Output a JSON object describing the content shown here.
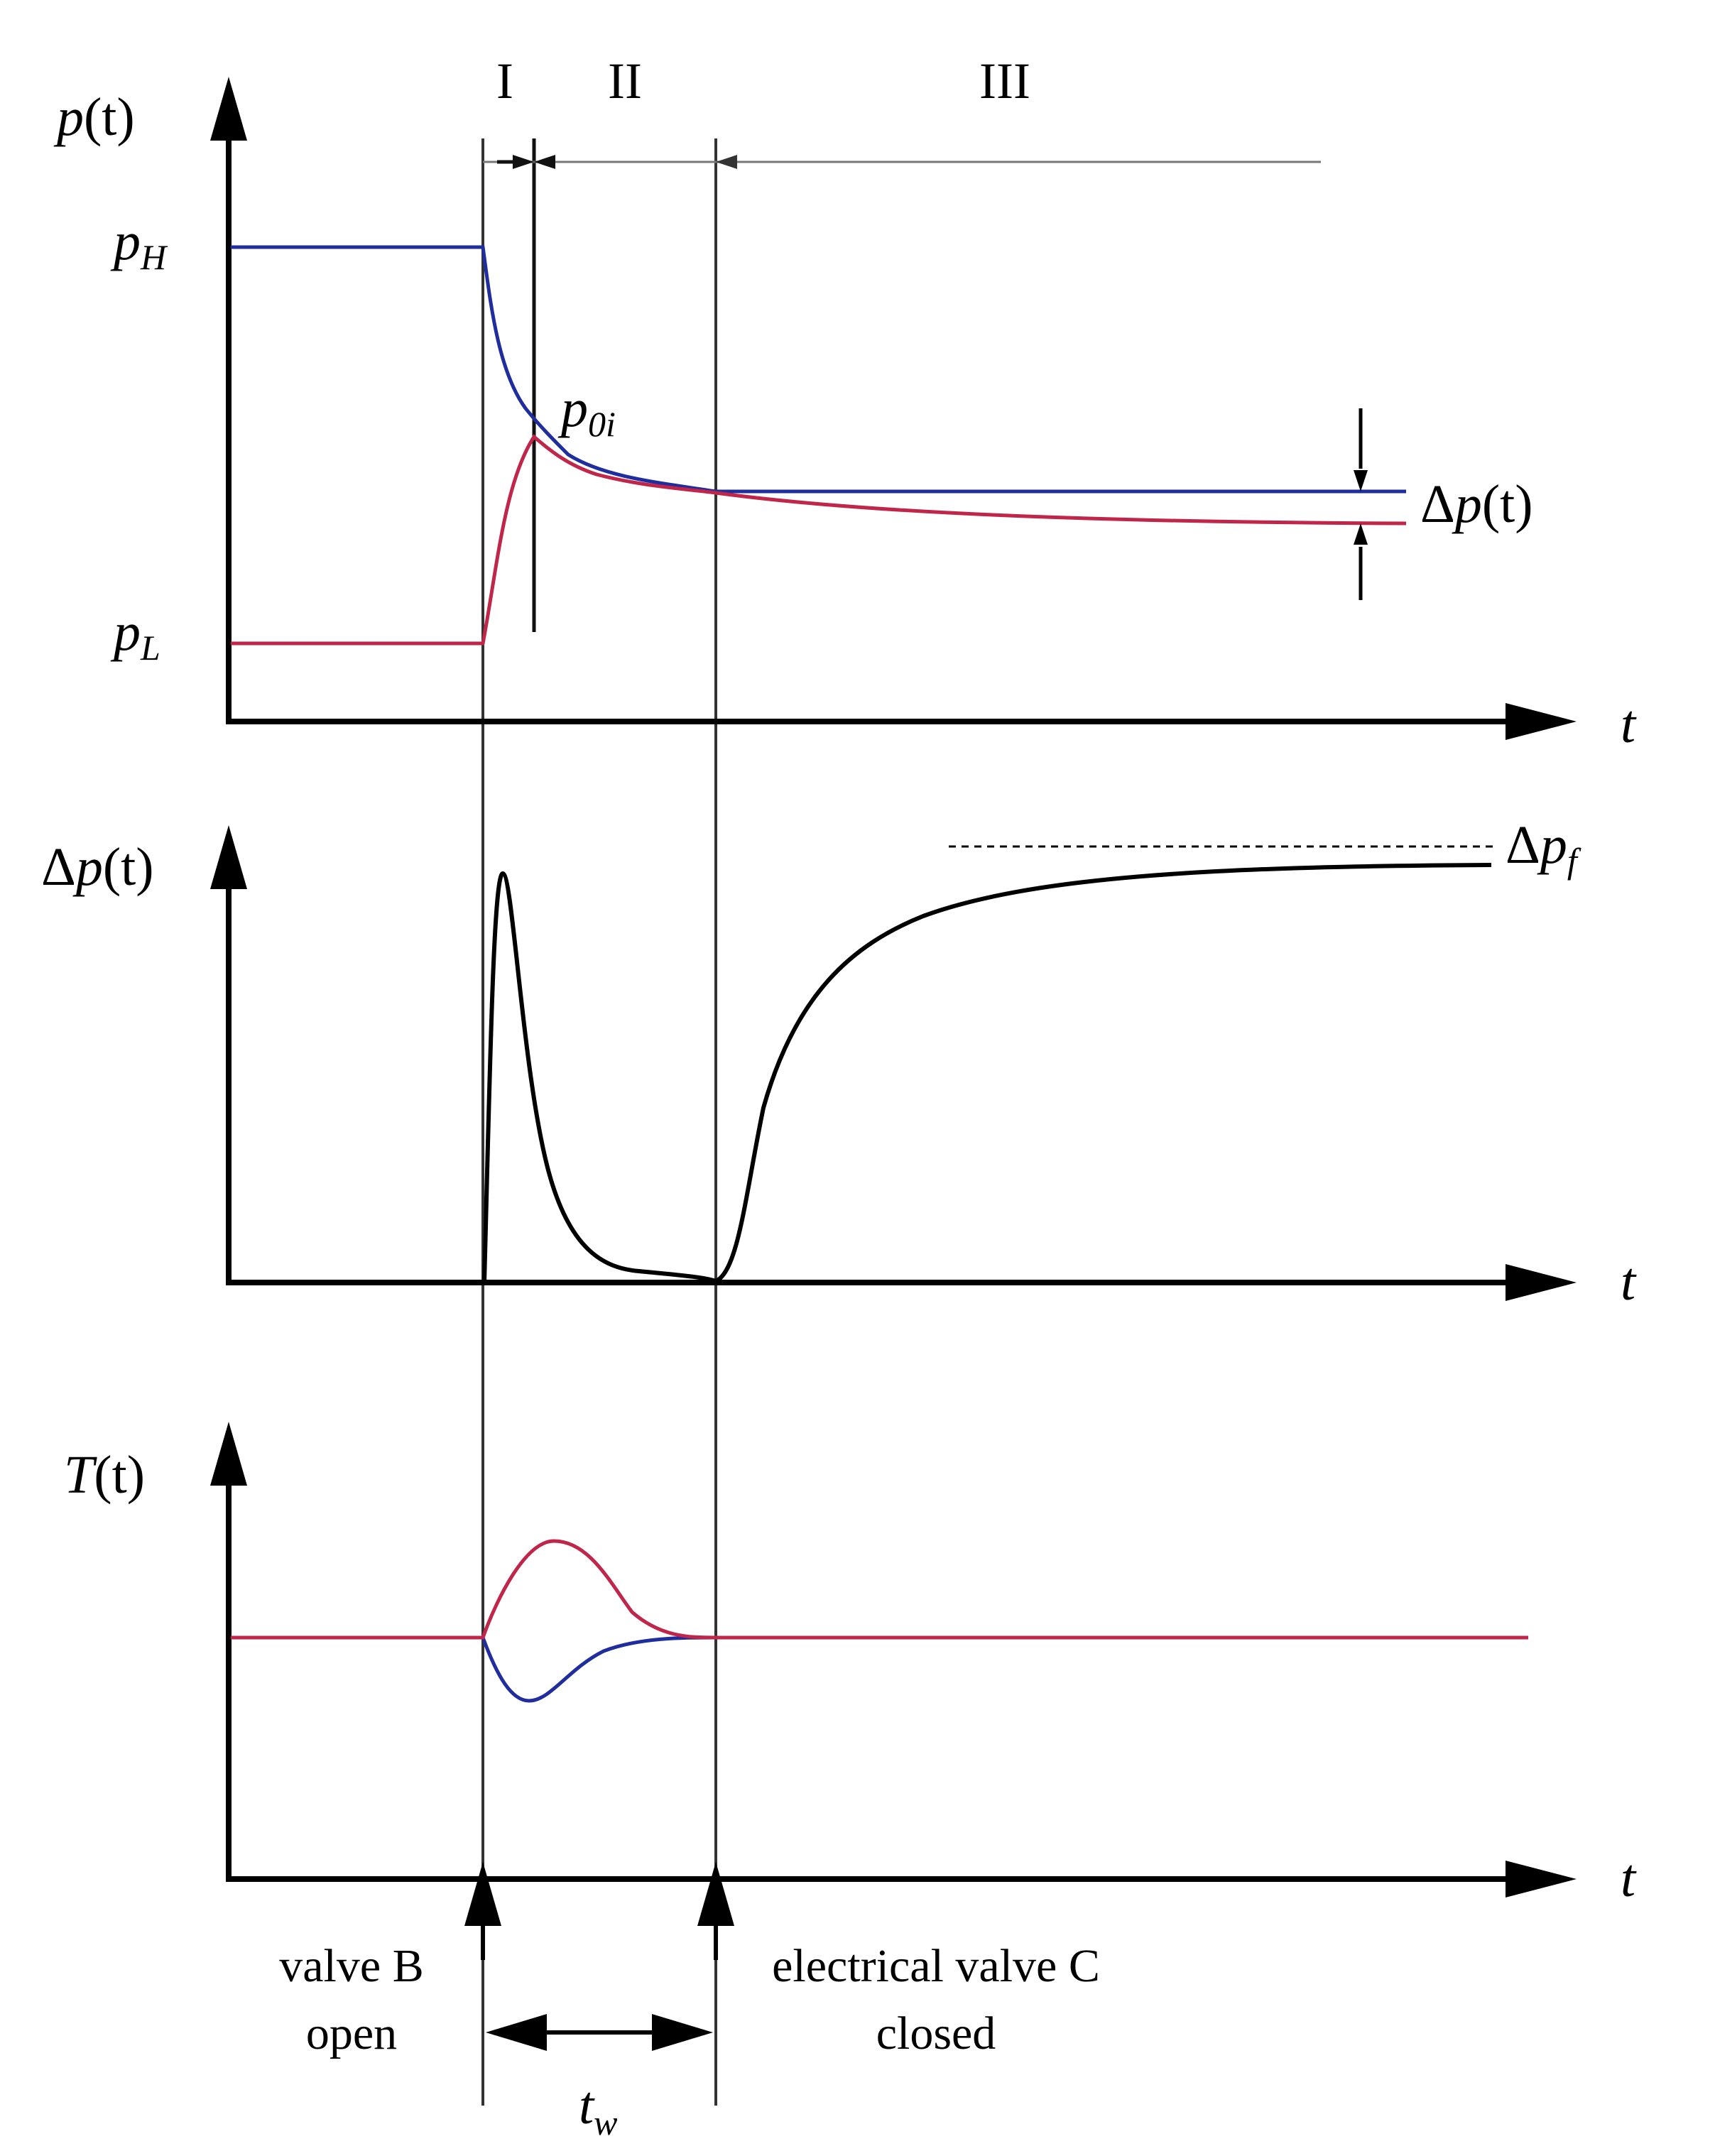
{
  "colors": {
    "high_pressure": "#1f2d9e",
    "low_pressure": "#c0264a",
    "axis": "#000000",
    "curve": "#000000",
    "guide": "#333333"
  },
  "regions": {
    "one": "I",
    "two": "II",
    "three": "III"
  },
  "top_panel": {
    "y_label": {
      "base": "p",
      "paren": "(t)"
    },
    "x_label": "t",
    "p_high": {
      "base": "p",
      "sub": "H"
    },
    "p_low": {
      "base": "p",
      "sub": "L"
    },
    "p_0i": {
      "base": "p",
      "sub": "0i"
    },
    "delta_label": {
      "delta": "Δ",
      "base": "p",
      "paren": "(t)"
    }
  },
  "middle_panel": {
    "y_label": {
      "delta": "Δ",
      "base": "p",
      "paren": "(t)"
    },
    "x_label": "t",
    "final_label": {
      "delta": "Δ",
      "base": "p",
      "sub": "f"
    }
  },
  "bottom_panel": {
    "y_label": {
      "base": "T",
      "paren": "(t)"
    },
    "x_label": "t"
  },
  "events": {
    "valve_b": [
      "valve B",
      "open"
    ],
    "valve_c": [
      "electrical valve C",
      "closed"
    ],
    "t_w": {
      "base": "t",
      "sub": "w"
    }
  }
}
